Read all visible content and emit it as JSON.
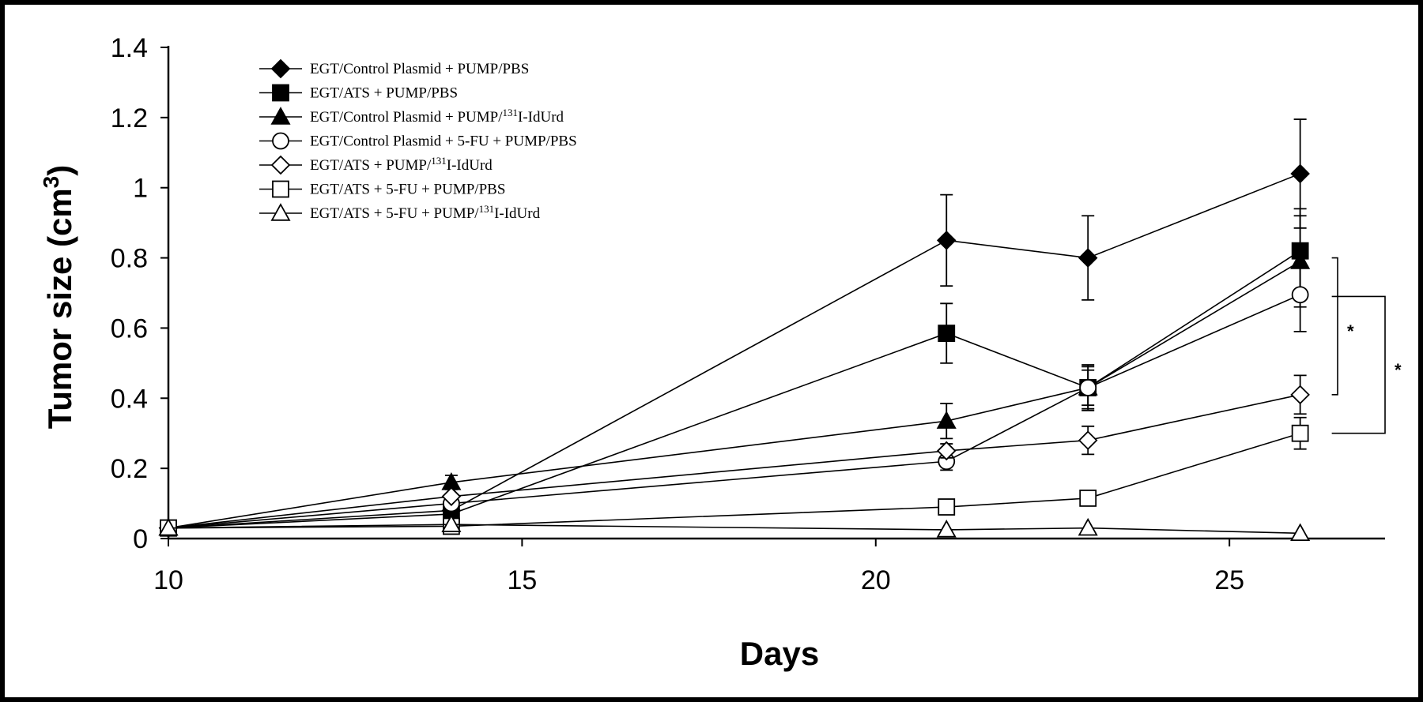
{
  "chart_data": {
    "type": "line",
    "title": "",
    "xlabel": "Days",
    "ylabel": "Tumor size (cm",
    "ylabel_sup": "3",
    "ylabel_suffix": ")",
    "xlim": [
      10,
      27.2
    ],
    "ylim": [
      0,
      1.4
    ],
    "x_ticks": [
      10,
      15,
      20,
      25
    ],
    "y_ticks": [
      0,
      0.2,
      0.4,
      0.6,
      0.8,
      1,
      1.2,
      1.4
    ],
    "y_tick_labels": [
      "0",
      "0.2",
      "0.4",
      "0.6",
      "0.8",
      "1",
      "1.2",
      "1.4"
    ],
    "grid": false,
    "legend_position": "top-left",
    "series": [
      {
        "name": "EGT/Control Plasmid + PUMP/PBS",
        "legend_parts": [
          "EGT/Control Plasmid + PUMP/PBS"
        ],
        "marker": "diamond",
        "filled": true,
        "x": [
          10,
          14,
          21,
          23,
          26
        ],
        "y": [
          0.03,
          0.08,
          0.85,
          0.8,
          1.04
        ],
        "err": [
          0,
          0,
          0.13,
          0.12,
          0.155
        ]
      },
      {
        "name": "EGT/ATS + PUMP/PBS",
        "legend_parts": [
          "EGT/ATS + PUMP/PBS"
        ],
        "marker": "square",
        "filled": true,
        "x": [
          10,
          14,
          21,
          23,
          26
        ],
        "y": [
          0.03,
          0.07,
          0.585,
          0.43,
          0.82
        ],
        "err": [
          0,
          0,
          0.085,
          0.065,
          0.12
        ]
      },
      {
        "name": "EGT/Control Plasmid + PUMP/131I-IdUrd",
        "legend_parts": [
          "EGT/Control Plasmid + PUMP/",
          "131",
          "I-IdUrd"
        ],
        "marker": "triangle",
        "filled": true,
        "x": [
          10,
          14,
          21,
          23,
          26
        ],
        "y": [
          0.03,
          0.16,
          0.335,
          0.43,
          0.79
        ],
        "err": [
          0,
          0.02,
          0.05,
          0.05,
          0.13
        ]
      },
      {
        "name": "EGT/Control Plasmid + 5-FU + PUMP/PBS",
        "legend_parts": [
          "EGT/Control Plasmid + 5-FU + PUMP/PBS"
        ],
        "marker": "circle",
        "filled": false,
        "x": [
          10,
          14,
          21,
          23,
          26
        ],
        "y": [
          0.03,
          0.1,
          0.22,
          0.43,
          0.695
        ],
        "err": [
          0,
          0,
          0.025,
          0.06,
          0.105
        ]
      },
      {
        "name": "EGT/ATS + PUMP/131I-IdUrd",
        "legend_parts": [
          "EGT/ATS + PUMP/",
          "131",
          "I-IdUrd"
        ],
        "marker": "diamond",
        "filled": false,
        "x": [
          10,
          14,
          21,
          23,
          26
        ],
        "y": [
          0.03,
          0.12,
          0.25,
          0.28,
          0.41
        ],
        "err": [
          0,
          0,
          0.02,
          0.04,
          0.055
        ]
      },
      {
        "name": "EGT/ATS + 5-FU + PUMP/PBS",
        "legend_parts": [
          "EGT/ATS + 5-FU + PUMP/PBS"
        ],
        "marker": "square",
        "filled": false,
        "x": [
          10,
          14,
          21,
          23,
          26
        ],
        "y": [
          0.03,
          0.035,
          0.09,
          0.115,
          0.3
        ],
        "err": [
          0,
          0,
          0,
          0,
          0.045
        ]
      },
      {
        "name": "EGT/ATS + 5-FU + PUMP/131I-IdUrd",
        "legend_parts": [
          "EGT/ATS + 5-FU + PUMP/",
          "131",
          "I-IdUrd"
        ],
        "marker": "triangle",
        "filled": false,
        "x": [
          10,
          14,
          21,
          23,
          26
        ],
        "y": [
          0.03,
          0.04,
          0.025,
          0.03,
          0.015
        ],
        "err": [
          0,
          0,
          0,
          0,
          0
        ]
      }
    ],
    "annotations": [
      {
        "label": "*",
        "from_y": 0.8,
        "to_y": 0.41
      },
      {
        "label": "*",
        "from_y": 0.69,
        "to_y": 0.3
      }
    ]
  }
}
